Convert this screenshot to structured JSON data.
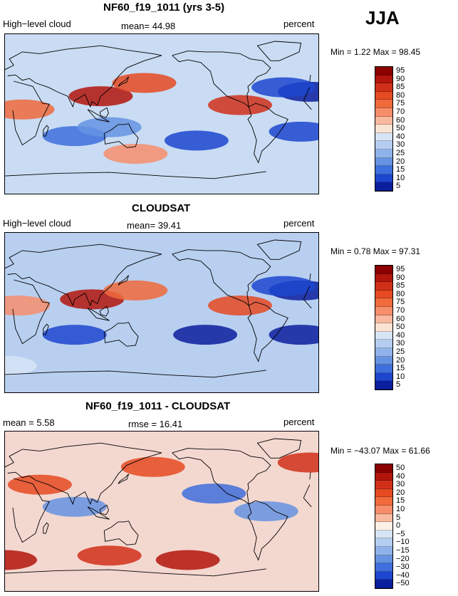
{
  "season": "JJA",
  "panels": [
    {
      "title": "NF60_f19_1011 (yrs 3-5)",
      "left_label": "High−level cloud",
      "center_label": "mean=  44.98",
      "right_label": "percent",
      "minmax": "Min =    1.22  Max =   98.45",
      "colorbar": [
        "95",
        "90",
        "85",
        "80",
        "75",
        "70",
        "60",
        "50",
        "40",
        "30",
        "25",
        "20",
        "15",
        "10",
        "5"
      ],
      "field": {
        "base": "#c9dcf3",
        "blobs": [
          {
            "lon": 110,
            "lat": 20,
            "value": 90
          },
          {
            "lon": 160,
            "lat": 35,
            "value": 80
          },
          {
            "lon": -90,
            "lat": 10,
            "value": 85
          },
          {
            "lon": 20,
            "lat": 5,
            "value": 75
          },
          {
            "lon": 150,
            "lat": -45,
            "value": 70
          },
          {
            "lon": -140,
            "lat": -30,
            "value": 10
          },
          {
            "lon": -20,
            "lat": -20,
            "value": 10
          },
          {
            "lon": 80,
            "lat": -25,
            "value": 15
          },
          {
            "lon": -10,
            "lat": 25,
            "value": 5
          },
          {
            "lon": -40,
            "lat": 30,
            "value": 10
          },
          {
            "lon": 120,
            "lat": -15,
            "value": 20
          }
        ]
      }
    },
    {
      "title": "CLOUDSAT",
      "left_label": "High−level cloud",
      "center_label": "mean=  39.41",
      "right_label": "percent",
      "minmax": "Min =    0.78  Max =   97.31",
      "colorbar": [
        "95",
        "90",
        "85",
        "80",
        "75",
        "70",
        "60",
        "50",
        "40",
        "30",
        "25",
        "20",
        "15",
        "10",
        "5"
      ],
      "field": {
        "base": "#b8cff0",
        "blobs": [
          {
            "lon": 100,
            "lat": 15,
            "value": 90
          },
          {
            "lon": 150,
            "lat": 25,
            "value": 75
          },
          {
            "lon": -90,
            "lat": 8,
            "value": 80
          },
          {
            "lon": 15,
            "lat": 8,
            "value": 70
          },
          {
            "lon": -130,
            "lat": -25,
            "value": 5
          },
          {
            "lon": -20,
            "lat": -25,
            "value": 5
          },
          {
            "lon": 80,
            "lat": -25,
            "value": 10
          },
          {
            "lon": -20,
            "lat": 25,
            "value": 5
          },
          {
            "lon": -40,
            "lat": 30,
            "value": 10
          },
          {
            "lon": 0,
            "lat": -60,
            "value": 40
          }
        ]
      }
    },
    {
      "title": "NF60_f19_1011 - CLOUDSAT",
      "left_label": "mean =    5.58",
      "center_label": "rmse =   16.41",
      "right_label": "percent",
      "minmax": "Min = −43.07  Max =   61.66",
      "colorbar": [
        "50",
        "40",
        "30",
        "20",
        "15",
        "10",
        "5",
        "0",
        "−5",
        "−10",
        "−15",
        "−20",
        "−30",
        "−40",
        "−50"
      ],
      "field": {
        "base": "#f3d8d0",
        "blobs": [
          {
            "lon": -150,
            "lat": -55,
            "value": 40
          },
          {
            "lon": 0,
            "lat": -55,
            "value": 35
          },
          {
            "lon": 120,
            "lat": -50,
            "value": 30
          },
          {
            "lon": -120,
            "lat": 20,
            "value": -30
          },
          {
            "lon": 80,
            "lat": 5,
            "value": -20
          },
          {
            "lon": 40,
            "lat": 30,
            "value": 20
          },
          {
            "lon": -60,
            "lat": 0,
            "value": -20
          },
          {
            "lon": 170,
            "lat": 50,
            "value": 20
          },
          {
            "lon": -10,
            "lat": 55,
            "value": 25
          }
        ]
      }
    }
  ]
}
